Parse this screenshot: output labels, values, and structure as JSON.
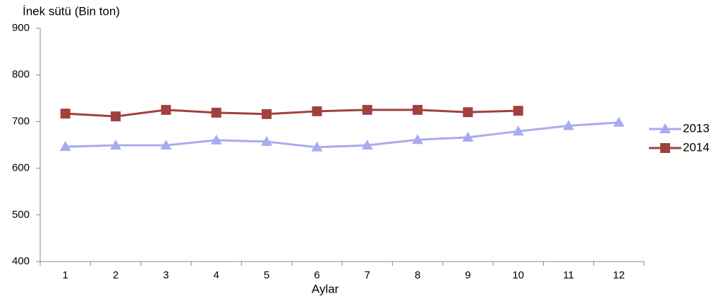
{
  "chart_data": {
    "type": "line",
    "title": "İnek sütü (Bin ton)",
    "x_label": "Aylar",
    "categories": [
      "1",
      "2",
      "3",
      "4",
      "5",
      "6",
      "7",
      "8",
      "9",
      "10",
      "11",
      "12"
    ],
    "series": [
      {
        "name": "2013",
        "color": "#aaaaf0",
        "marker": "triangle",
        "values": [
          646,
          649,
          649,
          660,
          657,
          645,
          649,
          661,
          666,
          679,
          691,
          698
        ]
      },
      {
        "name": "2014",
        "color": "#a0413f",
        "marker": "square",
        "values": [
          717,
          711,
          725,
          719,
          716,
          722,
          725,
          725,
          720,
          723,
          null,
          null
        ]
      }
    ],
    "ylim": [
      400,
      900
    ],
    "yticks": [
      400,
      500,
      600,
      700,
      800,
      900
    ],
    "grid": false,
    "legend": "right"
  }
}
